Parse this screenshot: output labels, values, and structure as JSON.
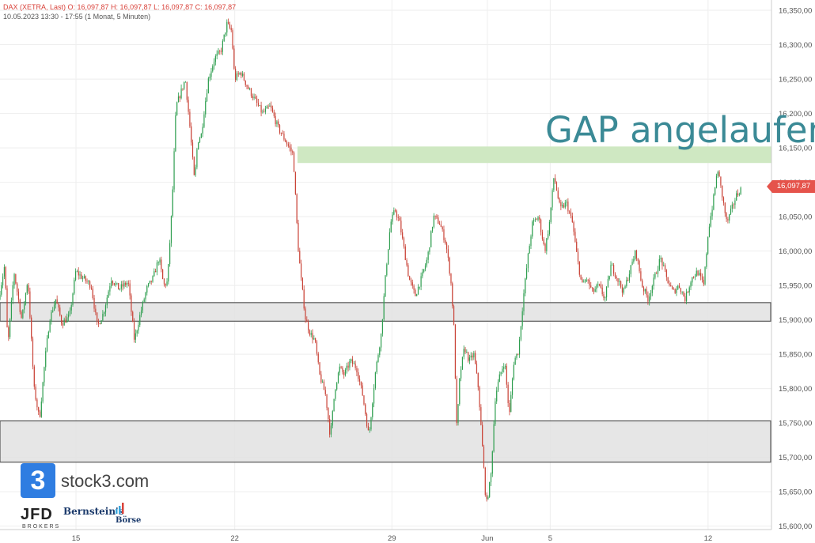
{
  "header": {
    "line1": "DAX (XETRA, Last)  O: 16,097,87  H: 16,097,87  L: 16,097,87  C: 16,097,87",
    "line2": "10.05.2023 13:30 - 17:55  (1 Monat, 5 Minuten)"
  },
  "annotation": "GAP angelaufen",
  "last_price": "16,097,87",
  "logos": {
    "stock3_mark": "3",
    "stock3_text": "stock3.com",
    "jfd": "JFD",
    "jfd_sub": "BROKERS",
    "bernstein_line1": "Bernstein's",
    "bernstein_line2": "Börse"
  },
  "colors": {
    "up": "#2e9e4f",
    "down": "#c94236",
    "gap_zone": "#cfe8c2",
    "support_zone": "#e2e2e2",
    "annotation": "#3b8a96"
  },
  "chart_data": {
    "type": "candlestick",
    "title": "",
    "ylim": [
      15595,
      16365
    ],
    "y_ticks": [
      15600,
      15650,
      15700,
      15750,
      15800,
      15850,
      15900,
      15950,
      16000,
      16050,
      16100,
      16150,
      16200,
      16250,
      16300,
      16350
    ],
    "y_tick_labels": [
      "15,600,00",
      "15,650,00",
      "15,700,00",
      "15,750,00",
      "15,800,00",
      "15,850,00",
      "15,900,00",
      "15,950,00",
      "16,000,00",
      "16,050,00",
      "16,100,00",
      "16,150,00",
      "16,200,00",
      "16,250,00",
      "16,300,00",
      "16,350,00"
    ],
    "x_ticks": [
      {
        "label": "15",
        "pos": 0.0985
      },
      {
        "label": "22",
        "pos": 0.3043
      },
      {
        "label": "29",
        "pos": 0.508
      },
      {
        "label": "Jun",
        "pos": 0.6317
      },
      {
        "label": "5",
        "pos": 0.7132
      },
      {
        "label": "12",
        "pos": 0.9178
      }
    ],
    "zones": [
      {
        "name": "gap",
        "x_start": 0.3856,
        "x_end": 1.0,
        "y_low": 16128,
        "y_high": 16152
      },
      {
        "name": "support-1",
        "x_start": 0.0,
        "x_end": 1.0,
        "y_low": 15898,
        "y_high": 15925
      },
      {
        "name": "support-2",
        "x_start": 0.0,
        "x_end": 1.0,
        "y_low": 15693,
        "y_high": 15753
      }
    ],
    "anchors": [
      [
        0.0,
        15930
      ],
      [
        0.008,
        15980
      ],
      [
        0.012,
        15860
      ],
      [
        0.02,
        15970
      ],
      [
        0.03,
        15900
      ],
      [
        0.038,
        15960
      ],
      [
        0.046,
        15800
      ],
      [
        0.053,
        15755
      ],
      [
        0.06,
        15840
      ],
      [
        0.066,
        15900
      ],
      [
        0.074,
        15930
      ],
      [
        0.082,
        15895
      ],
      [
        0.092,
        15905
      ],
      [
        0.1,
        15970
      ],
      [
        0.11,
        15960
      ],
      [
        0.12,
        15950
      ],
      [
        0.128,
        15890
      ],
      [
        0.136,
        15910
      ],
      [
        0.146,
        15960
      ],
      [
        0.156,
        15945
      ],
      [
        0.168,
        15955
      ],
      [
        0.176,
        15870
      ],
      [
        0.184,
        15910
      ],
      [
        0.192,
        15945
      ],
      [
        0.2,
        15960
      ],
      [
        0.208,
        15990
      ],
      [
        0.214,
        15950
      ],
      [
        0.219,
        15955
      ],
      [
        0.225,
        16070
      ],
      [
        0.23,
        16210
      ],
      [
        0.236,
        16230
      ],
      [
        0.242,
        16250
      ],
      [
        0.248,
        16180
      ],
      [
        0.254,
        16100
      ],
      [
        0.258,
        16160
      ],
      [
        0.263,
        16170
      ],
      [
        0.266,
        16200
      ],
      [
        0.272,
        16250
      ],
      [
        0.28,
        16280
      ],
      [
        0.288,
        16290
      ],
      [
        0.296,
        16330
      ],
      [
        0.302,
        16320
      ],
      [
        0.306,
        16250
      ],
      [
        0.314,
        16260
      ],
      [
        0.322,
        16240
      ],
      [
        0.332,
        16220
      ],
      [
        0.342,
        16200
      ],
      [
        0.352,
        16210
      ],
      [
        0.362,
        16180
      ],
      [
        0.372,
        16160
      ],
      [
        0.382,
        16140
      ],
      [
        0.388,
        16010
      ],
      [
        0.392,
        15960
      ],
      [
        0.398,
        15900
      ],
      [
        0.404,
        15880
      ],
      [
        0.41,
        15870
      ],
      [
        0.416,
        15820
      ],
      [
        0.424,
        15790
      ],
      [
        0.43,
        15730
      ],
      [
        0.436,
        15800
      ],
      [
        0.442,
        15830
      ],
      [
        0.448,
        15820
      ],
      [
        0.456,
        15840
      ],
      [
        0.464,
        15830
      ],
      [
        0.472,
        15790
      ],
      [
        0.48,
        15730
      ],
      [
        0.488,
        15820
      ],
      [
        0.496,
        15880
      ],
      [
        0.502,
        15970
      ],
      [
        0.508,
        16040
      ],
      [
        0.514,
        16060
      ],
      [
        0.52,
        16040
      ],
      [
        0.526,
        16000
      ],
      [
        0.532,
        15960
      ],
      [
        0.54,
        15935
      ],
      [
        0.548,
        15960
      ],
      [
        0.556,
        15990
      ],
      [
        0.564,
        16050
      ],
      [
        0.572,
        16040
      ],
      [
        0.58,
        16010
      ],
      [
        0.586,
        15960
      ],
      [
        0.59,
        15895
      ],
      [
        0.594,
        15740
      ],
      [
        0.598,
        15820
      ],
      [
        0.604,
        15860
      ],
      [
        0.61,
        15840
      ],
      [
        0.616,
        15850
      ],
      [
        0.622,
        15800
      ],
      [
        0.628,
        15700
      ],
      [
        0.632,
        15630
      ],
      [
        0.638,
        15670
      ],
      [
        0.644,
        15790
      ],
      [
        0.65,
        15820
      ],
      [
        0.656,
        15840
      ],
      [
        0.662,
        15760
      ],
      [
        0.668,
        15840
      ],
      [
        0.674,
        15855
      ],
      [
        0.68,
        15930
      ],
      [
        0.686,
        15990
      ],
      [
        0.692,
        16040
      ],
      [
        0.7,
        16050
      ],
      [
        0.708,
        16000
      ],
      [
        0.714,
        16040
      ],
      [
        0.72,
        16110
      ],
      [
        0.728,
        16060
      ],
      [
        0.736,
        16070
      ],
      [
        0.744,
        16040
      ],
      [
        0.75,
        15990
      ],
      [
        0.756,
        15950
      ],
      [
        0.762,
        15960
      ],
      [
        0.77,
        15940
      ],
      [
        0.778,
        15950
      ],
      [
        0.786,
        15930
      ],
      [
        0.794,
        15980
      ],
      [
        0.802,
        15960
      ],
      [
        0.81,
        15940
      ],
      [
        0.818,
        15970
      ],
      [
        0.826,
        16000
      ],
      [
        0.834,
        15950
      ],
      [
        0.842,
        15930
      ],
      [
        0.85,
        15960
      ],
      [
        0.858,
        15990
      ],
      [
        0.866,
        15960
      ],
      [
        0.874,
        15940
      ],
      [
        0.882,
        15950
      ],
      [
        0.89,
        15930
      ],
      [
        0.898,
        15960
      ],
      [
        0.906,
        15970
      ],
      [
        0.914,
        15950
      ],
      [
        0.92,
        16030
      ],
      [
        0.926,
        16070
      ],
      [
        0.932,
        16120
      ],
      [
        0.938,
        16080
      ],
      [
        0.944,
        16040
      ],
      [
        0.95,
        16060
      ],
      [
        0.956,
        16080
      ],
      [
        0.962,
        16090
      ]
    ]
  }
}
